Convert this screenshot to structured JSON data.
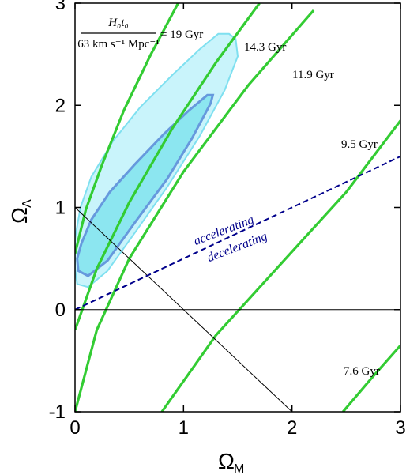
{
  "chart_data": {
    "type": "contour",
    "xlim": [
      0,
      3
    ],
    "ylim": [
      -1,
      3
    ],
    "x_ticks": [
      "0",
      "1",
      "2",
      "3"
    ],
    "y_ticks": [
      "-1",
      "0",
      "1",
      "2",
      "3"
    ],
    "xlabel": {
      "main": "Ω",
      "sub": "M"
    },
    "ylabel": {
      "main": "Ω",
      "sub": "Λ"
    },
    "colors": {
      "age": "#33cc33",
      "inner_contour_fill": "#8ce6f0",
      "inner_contour_line": "#6699dd",
      "outer_contour_fill": "#c9f4fb",
      "outer_contour_line": "#7fe0f0",
      "accel_line": "#00008b"
    },
    "formula": {
      "numerator": "H₀t₀",
      "denominator": "63 km s⁻¹ Mpc⁻¹",
      "suffix": "= 19 Gyr"
    },
    "age_labels": [
      "14.3 Gyr",
      "11.9 Gyr",
      "9.5 Gyr",
      "7.6 Gyr"
    ],
    "age_curves": [
      {
        "name": "19 Gyr",
        "points": [
          [
            0,
            0.55
          ],
          [
            0.1,
            0.98
          ],
          [
            0.25,
            1.42
          ],
          [
            0.45,
            1.95
          ],
          [
            0.7,
            2.5
          ],
          [
            0.95,
            3.0
          ]
        ]
      },
      {
        "name": "14.3 Gyr",
        "points": [
          [
            0,
            -0.2
          ],
          [
            0.2,
            0.4
          ],
          [
            0.5,
            1.05
          ],
          [
            0.9,
            1.78
          ],
          [
            1.3,
            2.42
          ],
          [
            1.7,
            3.0
          ]
        ]
      },
      {
        "name": "11.9 Gyr",
        "points": [
          [
            0,
            -1.0
          ],
          [
            0.2,
            -0.2
          ],
          [
            0.5,
            0.5
          ],
          [
            1.0,
            1.35
          ],
          [
            1.6,
            2.2
          ],
          [
            2.2,
            2.93
          ]
        ]
      },
      {
        "name": "9.5 Gyr",
        "points": [
          [
            0.8,
            -1.0
          ],
          [
            1.3,
            -0.25
          ],
          [
            1.9,
            0.45
          ],
          [
            2.5,
            1.15
          ],
          [
            3.0,
            1.85
          ]
        ]
      },
      {
        "name": "7.6 Gyr",
        "points": [
          [
            2.47,
            -1.0
          ],
          [
            2.75,
            -0.65
          ],
          [
            3.0,
            -0.35
          ]
        ]
      }
    ],
    "reference_lines": [
      {
        "name": "omega-zero",
        "points": [
          [
            0,
            0
          ],
          [
            3,
            0
          ]
        ]
      },
      {
        "name": "flat-universe",
        "points": [
          [
            0,
            1
          ],
          [
            2,
            -1
          ]
        ]
      },
      {
        "name": "accel-boundary",
        "points": [
          [
            0,
            0
          ],
          [
            3,
            1.5
          ]
        ]
      }
    ],
    "accelerating_label": "accelerating",
    "decelerating_label": "decelerating",
    "confidence_regions": [
      {
        "name": "outer",
        "points": [
          [
            0.02,
            0.25
          ],
          [
            0.12,
            0.22
          ],
          [
            0.3,
            0.38
          ],
          [
            0.55,
            0.75
          ],
          [
            0.85,
            1.2
          ],
          [
            1.15,
            1.7
          ],
          [
            1.38,
            2.15
          ],
          [
            1.5,
            2.48
          ],
          [
            1.48,
            2.65
          ],
          [
            1.42,
            2.7
          ],
          [
            1.32,
            2.7
          ],
          [
            1.15,
            2.55
          ],
          [
            0.9,
            2.3
          ],
          [
            0.6,
            1.98
          ],
          [
            0.35,
            1.65
          ],
          [
            0.15,
            1.3
          ],
          [
            0.05,
            1.0
          ],
          [
            0.0,
            0.7
          ],
          [
            0.0,
            0.4
          ]
        ]
      },
      {
        "name": "inner",
        "points": [
          [
            0.03,
            0.38
          ],
          [
            0.12,
            0.33
          ],
          [
            0.3,
            0.48
          ],
          [
            0.55,
            0.85
          ],
          [
            0.85,
            1.28
          ],
          [
            1.08,
            1.68
          ],
          [
            1.25,
            2.02
          ],
          [
            1.27,
            2.1
          ],
          [
            1.22,
            2.1
          ],
          [
            1.05,
            1.95
          ],
          [
            0.82,
            1.72
          ],
          [
            0.55,
            1.42
          ],
          [
            0.32,
            1.15
          ],
          [
            0.15,
            0.88
          ],
          [
            0.06,
            0.65
          ],
          [
            0.02,
            0.5
          ]
        ]
      }
    ]
  }
}
